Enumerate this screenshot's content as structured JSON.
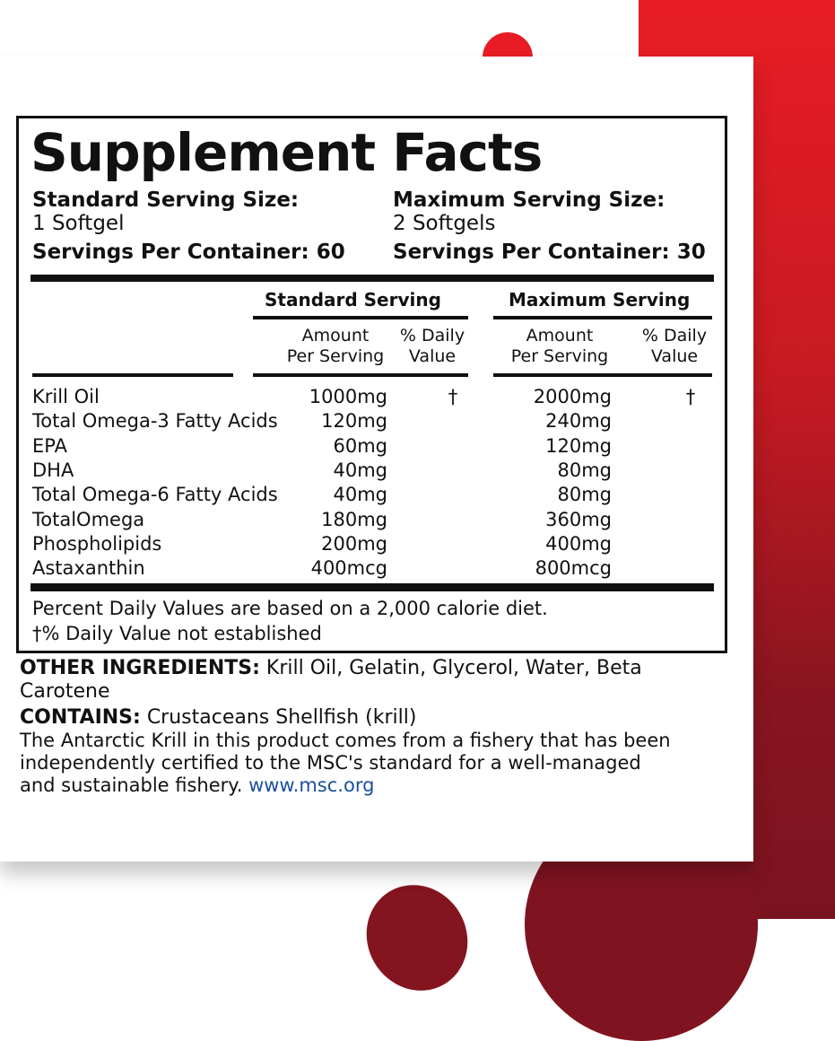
{
  "title": "Supplement Facts",
  "standard": {
    "size_label": "Standard Serving Size:",
    "size_value": "1 Softgel",
    "servings": "Servings Per Container: 60"
  },
  "maximum": {
    "size_label": "Maximum Serving Size:",
    "size_value": "2 Softgels",
    "servings": "Servings Per Container: 30"
  },
  "columns": {
    "standard": "Standard Serving",
    "maximum": "Maximum Serving",
    "amount_1": "Amount",
    "amount_2": "Per Serving",
    "dv_1": "% Daily",
    "dv_2": "Value"
  },
  "rows": [
    {
      "name": "Krill Oil",
      "std": "1000mg",
      "std_dv": "†",
      "max": "2000mg",
      "max_dv": "†"
    },
    {
      "name": "Total Omega-3 Fatty Acids",
      "std": "120mg",
      "std_dv": "",
      "max": "240mg",
      "max_dv": ""
    },
    {
      "name": "EPA",
      "std": "60mg",
      "std_dv": "",
      "max": "120mg",
      "max_dv": ""
    },
    {
      "name": "DHA",
      "std": "40mg",
      "std_dv": "",
      "max": "80mg",
      "max_dv": ""
    },
    {
      "name": "Total Omega-6 Fatty Acids",
      "std": "40mg",
      "std_dv": "",
      "max": "80mg",
      "max_dv": ""
    },
    {
      "name": "TotalOmega",
      "std": "180mg",
      "std_dv": "",
      "max": "360mg",
      "max_dv": ""
    },
    {
      "name": "Phospholipids",
      "std": "200mg",
      "std_dv": "",
      "max": "400mg",
      "max_dv": ""
    },
    {
      "name": "Astaxanthin",
      "std": "400mcg",
      "std_dv": "",
      "max": "800mcg",
      "max_dv": ""
    }
  ],
  "footnotes": [
    "Percent Daily Values are based on a 2,000 calorie diet.",
    "†% Daily Value not established"
  ],
  "other": {
    "label": "OTHER INGREDIENTS:",
    "line1": " Krill Oil, Gelatin, Glycerol, Water, Beta",
    "line2": "Carotene"
  },
  "contains": {
    "label": "CONTAINS:",
    "text": " Crustaceans Shellfish (krill)"
  },
  "msc": {
    "line1": "The Antarctic Krill in this product comes from a fishery that has been",
    "line2": "independently certified to the MSC's standard for a well-managed",
    "line3": "and sustainable fishery. ",
    "link": "www.msc.org"
  },
  "colors": {
    "red": "#e81c24",
    "dark_red": "#7f1420",
    "link": "#1a4f9c"
  }
}
